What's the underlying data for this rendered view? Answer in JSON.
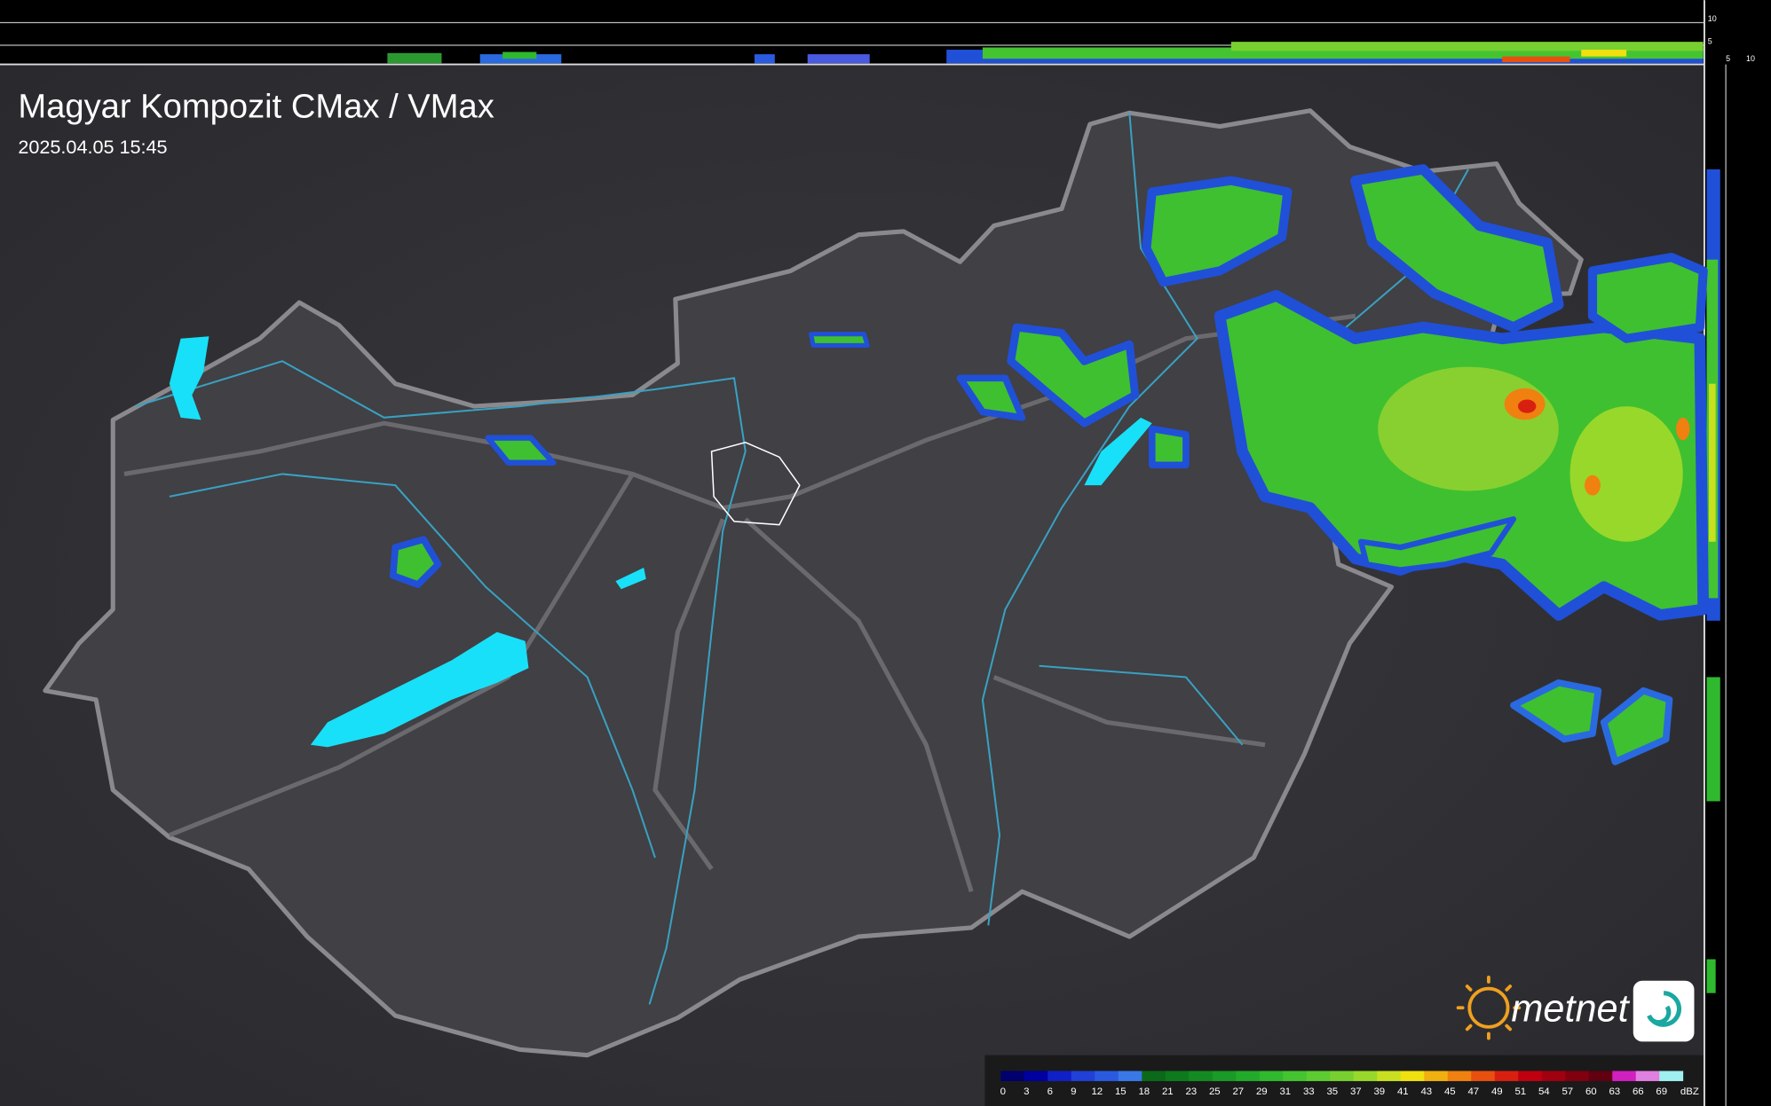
{
  "header": {
    "title": "Magyar Kompozit CMax / VMax",
    "timestamp": "2025.04.05 15:45"
  },
  "side_scale": {
    "top_labels": [
      "10",
      "5"
    ],
    "bottom_labels": [
      "5",
      "10"
    ]
  },
  "legend": {
    "values": [
      0,
      3,
      6,
      9,
      12,
      15,
      18,
      21,
      23,
      25,
      27,
      29,
      31,
      33,
      35,
      37,
      39,
      41,
      43,
      45,
      47,
      49,
      51,
      54,
      57,
      60,
      63,
      66,
      69
    ],
    "colors": [
      "#00006e",
      "#0000a0",
      "#1020c8",
      "#2040d8",
      "#2a5ae0",
      "#3a78e8",
      "#0a6a1a",
      "#0e7a1e",
      "#148a22",
      "#1a9a26",
      "#22aa2a",
      "#30b82e",
      "#44c430",
      "#5ccc30",
      "#78d030",
      "#98d82a",
      "#c8e020",
      "#f0e010",
      "#f0b010",
      "#f08010",
      "#e85010",
      "#d82010",
      "#c00010",
      "#a00010",
      "#800010",
      "#600010",
      "#d020c0",
      "#e080e0",
      "#a0f0f0"
    ],
    "unit": "dBZ"
  },
  "logo": {
    "text": "metnet"
  }
}
